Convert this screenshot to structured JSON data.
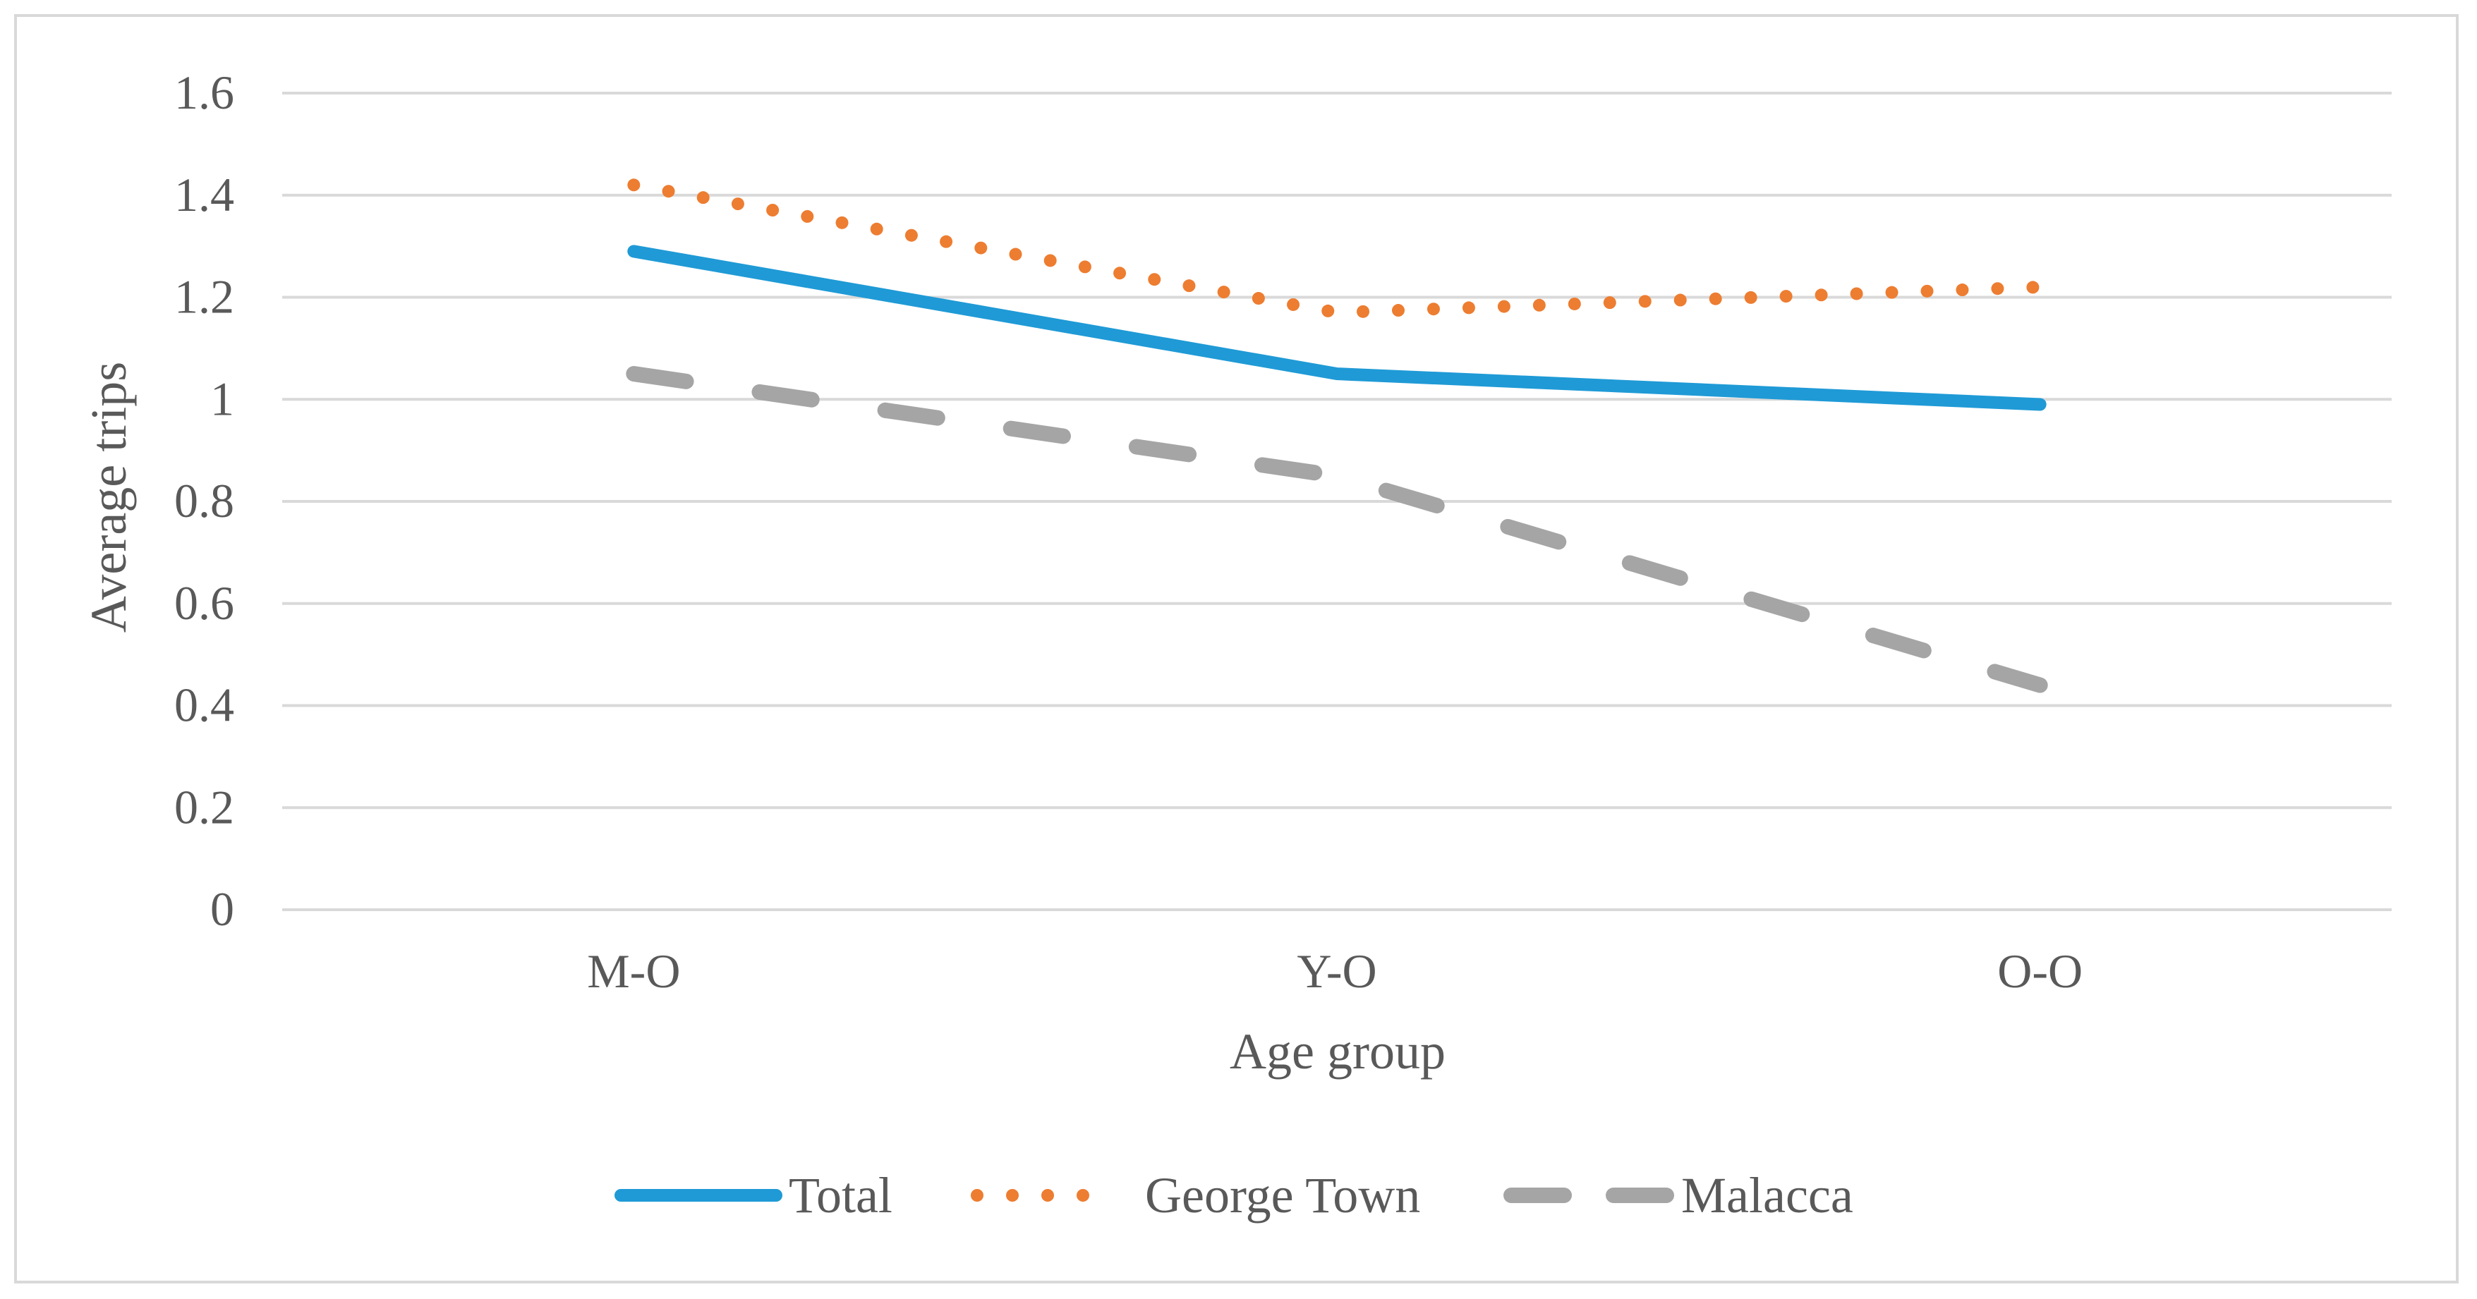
{
  "chart_data": {
    "type": "line",
    "title": "",
    "xlabel": "Age group",
    "ylabel": "Average trips",
    "categories": [
      "M-O",
      "Y-O",
      "O-O"
    ],
    "ylim": [
      0,
      1.6
    ],
    "yticks": [
      0,
      0.2,
      0.4,
      0.6,
      0.8,
      1,
      1.2,
      1.4,
      1.6
    ],
    "ytick_labels": [
      "0",
      "0.2",
      "0.4",
      "0.6",
      "0.8",
      "1",
      "1.2",
      "1.4",
      "1.6"
    ],
    "grid": true,
    "legend_position": "bottom",
    "series": [
      {
        "name": "Total",
        "values": [
          1.29,
          1.05,
          0.99
        ],
        "color": "#1f9ad6",
        "style": "solid"
      },
      {
        "name": "George Town",
        "values": [
          1.42,
          1.17,
          1.22
        ],
        "color": "#ed7d31",
        "style": "dotted"
      },
      {
        "name": "Malacca",
        "values": [
          1.05,
          0.85,
          0.44
        ],
        "color": "#a5a5a5",
        "style": "dashed"
      }
    ]
  },
  "colors": {
    "grid": "#d9d9d9",
    "axis_text": "#595959",
    "frame": "#d9d9d9"
  }
}
